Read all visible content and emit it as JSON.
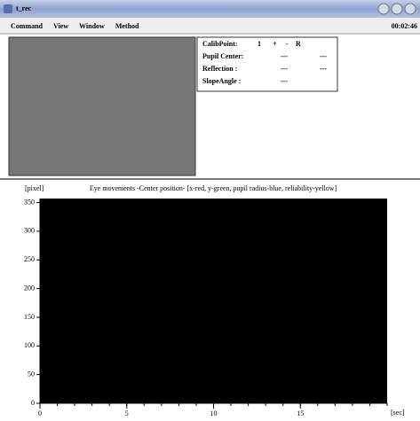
{
  "window": {
    "title": "t_rec"
  },
  "menu": [
    "Command",
    "View",
    "Window",
    "Method"
  ],
  "clock": "00:02:46",
  "calibration": {
    "rows": [
      [
        "CalibPoint:",
        "1",
        "+",
        "-",
        "R"
      ],
      [
        "Pupil Center:",
        "---",
        "---"
      ],
      [
        "Reflection :",
        "---",
        "---"
      ],
      [
        "SlopeAngle :",
        "---"
      ]
    ]
  },
  "chart_data": {
    "type": "line",
    "title": "Eye movements -Center position- [x-red, y-green, pupil radius-blue, reliability-yellow]",
    "ylabel": "[pixel]",
    "xlabel": "[sec]",
    "series": [],
    "xlim": [
      0,
      20
    ],
    "xticks": [
      0,
      5,
      10,
      15
    ],
    "xminor": 1,
    "ylim": [
      0,
      357
    ],
    "yticks": [
      0,
      50,
      100,
      150,
      200,
      250,
      300,
      350
    ],
    "background": "#000000"
  }
}
